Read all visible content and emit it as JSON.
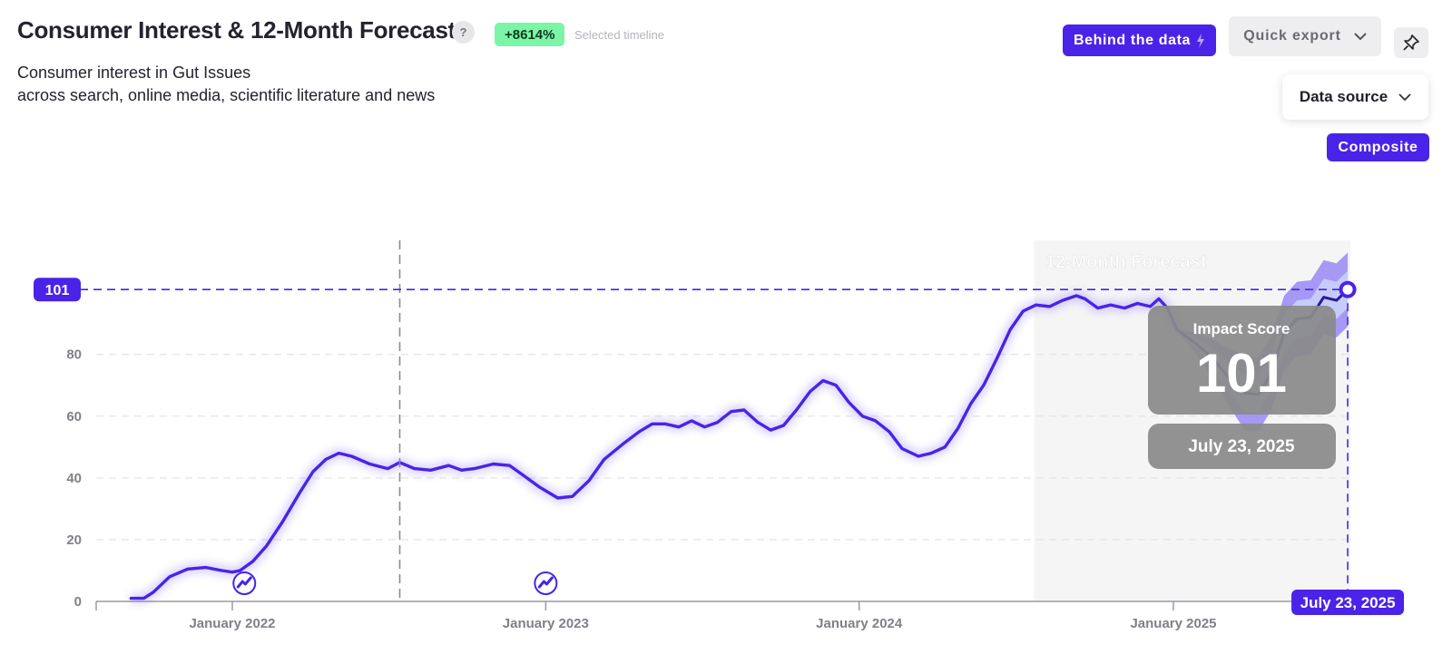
{
  "header": {
    "title": "Consumer Interest & 12-Month Forecast",
    "help_label": "?",
    "change_badge": "+8614%",
    "change_caption": "Selected timeline",
    "subtitle_line1": "Consumer interest in Gut Issues",
    "subtitle_line2": "across search, online media, scientific literature and news"
  },
  "toolbar": {
    "behind_label": "Behind the data",
    "export_label": "Quick export",
    "data_source_label": "Data source",
    "composite_label": "Composite",
    "icons": {
      "behind": "lightning-icon",
      "export": "chevron-down-icon",
      "pin": "pin-icon",
      "data_source": "chevron-down-icon",
      "event_marker": "trend-icon"
    }
  },
  "colors": {
    "accent": "#4a23e8",
    "positive_badge": "#7bf5a6",
    "forecast_band_outer": "#9c8ff5",
    "forecast_band_inner": "#c7cdfb",
    "forecast_bg": "#f5f5f6",
    "tooltip_bg": "#8a8a8a"
  },
  "chart_data": {
    "type": "line",
    "title": "Consumer Interest & 12-Month Forecast",
    "xlabel": "",
    "ylabel": "",
    "ylim": [
      0,
      110
    ],
    "yticks": [
      0,
      20,
      40,
      60,
      80
    ],
    "grid": true,
    "x_tick_labels": [
      "January 2022",
      "January 2023",
      "January 2024",
      "January 2025"
    ],
    "x_range": [
      "2021-08-01",
      "2025-08-31"
    ],
    "forecast_label": "12-Month Forecast",
    "forecast_start": "2024-07-23",
    "vertical_reference_date": "2022-07-15",
    "highlight": {
      "value_label": "101",
      "date_label": "July 23, 2025",
      "tooltip_title": "Impact Score",
      "tooltip_value": "101",
      "tooltip_date": "July 23, 2025"
    },
    "event_markers": [
      "2022-01-15",
      "2023-01-01"
    ],
    "series": [
      {
        "values": [
          [
            "2021-09-05",
            1
          ],
          [
            "2021-09-20",
            1
          ],
          [
            "2021-10-01",
            3
          ],
          [
            "2021-10-20",
            8
          ],
          [
            "2021-11-10",
            10.5
          ],
          [
            "2021-12-01",
            11
          ],
          [
            "2021-12-20",
            10
          ],
          [
            "2022-01-01",
            9.5
          ],
          [
            "2022-01-10",
            10
          ],
          [
            "2022-01-25",
            13
          ],
          [
            "2022-02-10",
            18
          ],
          [
            "2022-03-01",
            26
          ],
          [
            "2022-03-20",
            35
          ],
          [
            "2022-04-05",
            42
          ],
          [
            "2022-04-20",
            46
          ],
          [
            "2022-05-05",
            48
          ],
          [
            "2022-05-20",
            47
          ],
          [
            "2022-06-10",
            44.5
          ],
          [
            "2022-07-01",
            43
          ],
          [
            "2022-07-15",
            45
          ],
          [
            "2022-08-01",
            43
          ],
          [
            "2022-08-20",
            42.5
          ],
          [
            "2022-09-10",
            44
          ],
          [
            "2022-09-25",
            42.5
          ],
          [
            "2022-10-10",
            43
          ],
          [
            "2022-11-01",
            44.5
          ],
          [
            "2022-11-20",
            44
          ],
          [
            "2022-12-05",
            41
          ],
          [
            "2022-12-25",
            37
          ],
          [
            "2023-01-15",
            33.5
          ],
          [
            "2023-02-01",
            34
          ],
          [
            "2023-02-20",
            39
          ],
          [
            "2023-03-10",
            46
          ],
          [
            "2023-04-01",
            51
          ],
          [
            "2023-04-20",
            55
          ],
          [
            "2023-05-05",
            57.5
          ],
          [
            "2023-05-20",
            57.5
          ],
          [
            "2023-06-05",
            56.5
          ],
          [
            "2023-06-20",
            58.5
          ],
          [
            "2023-07-05",
            56.5
          ],
          [
            "2023-07-20",
            58
          ],
          [
            "2023-08-05",
            61.5
          ],
          [
            "2023-08-20",
            62
          ],
          [
            "2023-09-05",
            58
          ],
          [
            "2023-09-20",
            55.5
          ],
          [
            "2023-10-05",
            57
          ],
          [
            "2023-10-20",
            62
          ],
          [
            "2023-11-05",
            68
          ],
          [
            "2023-11-20",
            71.5
          ],
          [
            "2023-12-05",
            70
          ],
          [
            "2023-12-20",
            64.5
          ],
          [
            "2024-01-05",
            60
          ],
          [
            "2024-01-20",
            58.5
          ],
          [
            "2024-02-05",
            55
          ],
          [
            "2024-02-20",
            49.5
          ],
          [
            "2024-03-10",
            47
          ],
          [
            "2024-03-25",
            48
          ],
          [
            "2024-04-10",
            50
          ],
          [
            "2024-04-25",
            56
          ],
          [
            "2024-05-10",
            64
          ],
          [
            "2024-05-25",
            70
          ],
          [
            "2024-06-10",
            79
          ],
          [
            "2024-06-25",
            88
          ],
          [
            "2024-07-10",
            94
          ],
          [
            "2024-07-25",
            96
          ],
          [
            "2024-08-10",
            95.5
          ],
          [
            "2024-08-25",
            97.5
          ],
          [
            "2024-09-10",
            99
          ],
          [
            "2024-09-20",
            98
          ],
          [
            "2024-10-05",
            95
          ],
          [
            "2024-10-20",
            96
          ],
          [
            "2024-11-05",
            95
          ],
          [
            "2024-11-20",
            96.5
          ],
          [
            "2024-12-05",
            95.5
          ],
          [
            "2024-12-15",
            98
          ],
          [
            "2024-12-25",
            95
          ],
          [
            "2025-01-05",
            88
          ]
        ]
      },
      {
        "values": [
          [
            "2025-01-05",
            88
          ],
          [
            "2025-01-25",
            84
          ],
          [
            "2025-02-15",
            79
          ],
          [
            "2025-03-05",
            73
          ],
          [
            "2025-03-25",
            67.5
          ],
          [
            "2025-04-10",
            67
          ],
          [
            "2025-04-25",
            74
          ],
          [
            "2025-05-10",
            87
          ],
          [
            "2025-05-25",
            91.5
          ],
          [
            "2025-06-10",
            92
          ],
          [
            "2025-06-25",
            98.5
          ],
          [
            "2025-07-10",
            97.5
          ],
          [
            "2025-07-23",
            101
          ]
        ]
      }
    ]
  }
}
